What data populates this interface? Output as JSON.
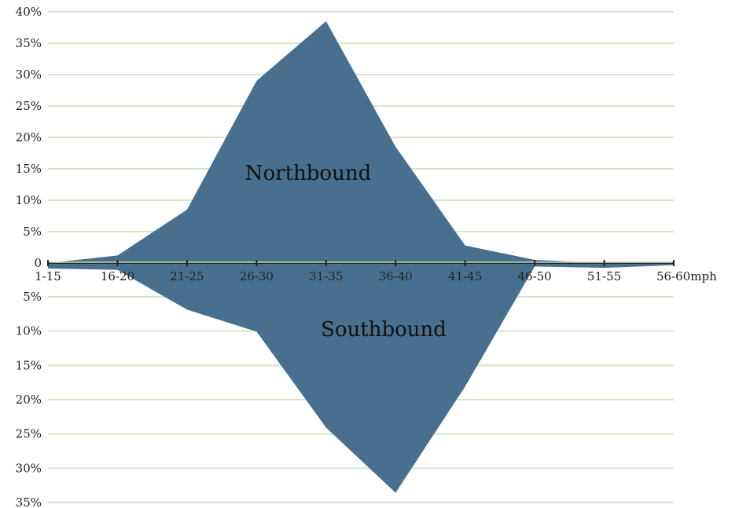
{
  "chart_data": {
    "type": "area",
    "categories": [
      "1-15",
      "16-20",
      "21-25",
      "26-30",
      "31-35",
      "36-40",
      "41-45",
      "46-50",
      "51-55",
      "56-60mph"
    ],
    "series": [
      {
        "name": "Northbound",
        "values": [
          0,
          1.2,
          8.5,
          29,
          38.5,
          18.5,
          2.8,
          0.5,
          0,
          0
        ]
      },
      {
        "name": "Southbound",
        "values": [
          0.8,
          1.0,
          6.8,
          10.0,
          24.0,
          33.5,
          18.0,
          0.5,
          0.7,
          0.3
        ]
      }
    ],
    "y_up_ticks": [
      "0",
      "5%",
      "10%",
      "15%",
      "20%",
      "25%",
      "30%",
      "35%",
      "40%"
    ],
    "y_down_ticks": [
      "5%",
      "10%",
      "15%",
      "20%",
      "25%",
      "30%",
      "35%"
    ],
    "ylim_up": [
      0,
      40
    ],
    "ylim_down": [
      0,
      35
    ],
    "grid": true,
    "colors": {
      "area": "#486f8d",
      "grid": "#d4e6c8",
      "axis": "#222222",
      "baseline": "#c8ddb8"
    }
  }
}
